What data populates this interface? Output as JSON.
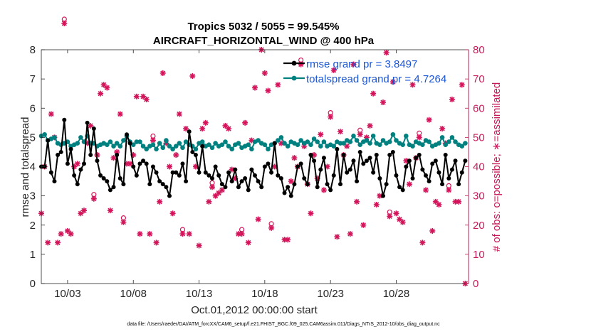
{
  "chart_data": {
    "type": "line",
    "title": "Tropics 5032 / 5055 = 99.545%",
    "subtitle": "AIRCRAFT_HORIZONTAL_WIND @ 400 hPa",
    "xlabel": "Oct.01,2012 00:00:00 start",
    "ylabel": "rmse and totalspread",
    "y2label": "# of obs: o=possible; ∗=assimilated",
    "footer": "data file: /Users/raeder/DAI/ATM_forcXX/CAM6_setup/f.e21.FHIST_BGC.f09_025.CAM6assim.011/Diags_NTrS_2012-10/obs_diag_output.nc",
    "xlim": [
      1,
      33.5
    ],
    "ylim": [
      0,
      8
    ],
    "y2lim": [
      0,
      80
    ],
    "xticks": [
      3,
      8,
      13,
      18,
      23,
      28
    ],
    "xtick_labels": [
      "10/03",
      "10/08",
      "10/13",
      "10/18",
      "10/23",
      "10/28"
    ],
    "yticks": [
      "0",
      "1",
      "2",
      "3",
      "4",
      "5",
      "6",
      "7",
      "8"
    ],
    "y2ticks": [
      "0",
      "10",
      "20",
      "30",
      "40",
      "50",
      "60",
      "70",
      "80"
    ],
    "legend": {
      "position": "top-right",
      "entries": [
        "rmse grand pr = 3.8497",
        "totalspread grand pr = 4.7264"
      ]
    },
    "colors": {
      "rmse": "#000000",
      "spread": "#00807f",
      "obs": "#d4145a",
      "right_axis": "#c8185a",
      "legend_text": "#1a55d6"
    },
    "x": [
      1.0,
      1.25,
      1.5,
      1.75,
      2.0,
      2.25,
      2.5,
      2.75,
      3.0,
      3.25,
      3.5,
      3.75,
      4.0,
      4.25,
      4.5,
      4.75,
      5.0,
      5.25,
      5.5,
      5.75,
      6.0,
      6.25,
      6.5,
      6.75,
      7.0,
      7.25,
      7.5,
      7.75,
      8.0,
      8.25,
      8.5,
      8.75,
      9.0,
      9.25,
      9.5,
      9.75,
      10.0,
      10.25,
      10.5,
      10.75,
      11.0,
      11.25,
      11.5,
      11.75,
      12.0,
      12.25,
      12.5,
      12.75,
      13.0,
      13.25,
      13.5,
      13.75,
      14.0,
      14.25,
      14.5,
      14.75,
      15.0,
      15.25,
      15.5,
      15.75,
      16.0,
      16.25,
      16.5,
      16.75,
      17.0,
      17.25,
      17.5,
      17.75,
      18.0,
      18.25,
      18.5,
      18.75,
      19.0,
      19.25,
      19.5,
      19.75,
      20.0,
      20.25,
      20.5,
      20.75,
      21.0,
      21.25,
      21.5,
      21.75,
      22.0,
      22.25,
      22.5,
      22.75,
      23.0,
      23.25,
      23.5,
      23.75,
      24.0,
      24.25,
      24.5,
      24.75,
      25.0,
      25.25,
      25.5,
      25.75,
      26.0,
      26.25,
      26.5,
      26.75,
      27.0,
      27.25,
      27.5,
      27.75,
      28.0,
      28.25,
      28.5,
      28.75,
      29.0,
      29.25,
      29.5,
      29.75,
      30.0,
      30.25,
      30.5,
      30.75,
      31.0,
      31.25,
      31.5,
      31.75,
      32.0,
      32.25,
      32.5,
      32.75,
      33.0,
      33.25
    ],
    "series": [
      {
        "name": "rmse",
        "values": [
          4.0,
          4.0,
          4.9,
          3.8,
          3.5,
          4.4,
          4.5,
          5.6,
          4.1,
          4.6,
          3.7,
          3.4,
          3.9,
          4.1,
          5.5,
          4.4,
          5.3,
          4.2,
          3.7,
          3.6,
          3.5,
          3.2,
          3.3,
          4.4,
          3.6,
          3.4,
          5.1,
          4.8,
          4.0,
          3.7,
          4.1,
          4.2,
          4.1,
          3.4,
          4.0,
          3.8,
          3.5,
          3.4,
          3.3,
          3.0,
          3.8,
          3.8,
          3.7,
          4.1,
          3.5,
          5.2,
          4.5,
          4.4,
          3.8,
          4.7,
          3.8,
          3.7,
          3.6,
          4.0,
          3.7,
          3.4,
          3.3,
          3.8,
          3.5,
          3.9,
          3.3,
          3.5,
          3.6,
          3.2,
          3.9,
          3.7,
          3.5,
          3.3,
          4.0,
          4.1,
          3.8,
          4.8,
          3.7,
          3.6,
          3.1,
          3.3,
          3.0,
          3.4,
          4.0,
          4.1,
          3.6,
          3.4,
          4.4,
          4.2,
          3.3,
          3.9,
          4.3,
          3.4,
          3.2,
          3.7,
          4.6,
          3.4,
          4.4,
          3.8,
          3.9,
          4.2,
          3.5,
          4.5,
          4.1,
          4.2,
          4.3,
          3.8,
          4.4,
          3.6,
          3.0,
          3.4,
          4.4,
          4.5,
          3.7,
          3.3,
          3.2,
          4.0,
          4.2,
          3.6,
          4.3,
          4.4,
          3.9,
          3.7,
          3.5,
          4.1,
          4.2,
          3.8,
          3.4,
          4.4,
          3.6,
          3.9,
          4.2,
          3.4,
          3.8,
          4.2
        ]
      },
      {
        "name": "totalspread",
        "values": [
          5.05,
          5.1,
          4.9,
          4.95,
          5.0,
          4.8,
          4.75,
          4.8,
          4.85,
          4.7,
          4.75,
          4.8,
          5.0,
          4.85,
          5.05,
          4.8,
          4.8,
          4.7,
          4.75,
          4.8,
          4.75,
          4.85,
          4.7,
          4.8,
          4.7,
          4.9,
          5.05,
          4.85,
          4.75,
          4.85,
          4.85,
          4.7,
          4.6,
          4.7,
          4.75,
          4.6,
          4.8,
          4.65,
          4.9,
          4.7,
          4.6,
          4.7,
          4.8,
          4.65,
          4.85,
          4.75,
          4.7,
          4.6,
          4.8,
          4.85,
          4.7,
          4.75,
          4.65,
          4.8,
          4.7,
          4.75,
          4.85,
          4.7,
          4.6,
          4.75,
          4.8,
          4.65,
          4.7,
          4.75,
          4.6,
          4.85,
          4.9,
          4.8,
          4.75,
          4.6,
          4.75,
          4.8,
          4.9,
          5.0,
          4.8,
          4.7,
          4.85,
          4.8,
          4.75,
          4.9,
          4.8,
          4.85,
          4.75,
          4.95,
          4.85,
          4.7,
          4.85,
          4.7,
          4.75,
          4.7,
          4.85,
          4.8,
          4.8,
          4.9,
          4.85,
          5.05,
          4.9,
          4.75,
          4.85,
          4.9,
          4.8,
          5.05,
          4.8,
          4.75,
          4.9,
          4.8,
          4.85,
          5.1,
          4.9,
          4.8,
          4.75,
          5.05,
          4.75,
          4.7,
          4.85,
          4.8,
          4.75,
          4.9,
          4.85,
          4.7,
          4.75,
          4.8,
          5.0,
          4.75,
          4.85,
          5.0,
          4.85,
          4.75,
          4.7,
          4.8
        ]
      },
      {
        "name": "obs",
        "values": [
          24,
          40,
          14,
          58,
          50,
          14,
          17,
          89,
          18,
          17,
          40,
          41,
          24,
          25,
          48,
          54,
          29,
          44,
          65,
          68,
          67,
          25,
          43,
          45,
          58,
          21,
          41,
          41,
          44,
          64,
          17,
          64,
          63,
          17,
          49,
          14,
          28,
          72,
          48,
          40,
          24,
          44,
          58,
          17,
          53,
          17,
          71,
          40,
          13,
          53,
          55,
          28,
          33,
          30,
          31,
          32,
          54,
          53,
          39,
          36,
          17,
          17,
          55,
          14,
          49,
          67,
          22,
          80,
          72,
          66,
          19,
          40,
          68,
          48,
          15,
          15,
          35,
          43,
          40,
          75,
          47,
          34,
          24,
          44,
          36,
          51,
          32,
          40,
          57,
          73,
          16,
          52,
          44,
          47,
          17,
          75,
          28,
          51,
          20,
          50,
          54,
          65,
          27,
          30,
          62,
          79,
          23,
          69,
          24,
          22,
          21,
          42,
          34,
          68,
          43,
          50,
          14,
          32,
          56,
          18,
          28,
          27,
          53,
          48,
          32,
          63,
          28,
          28,
          68,
          0
        ]
      }
    ]
  }
}
